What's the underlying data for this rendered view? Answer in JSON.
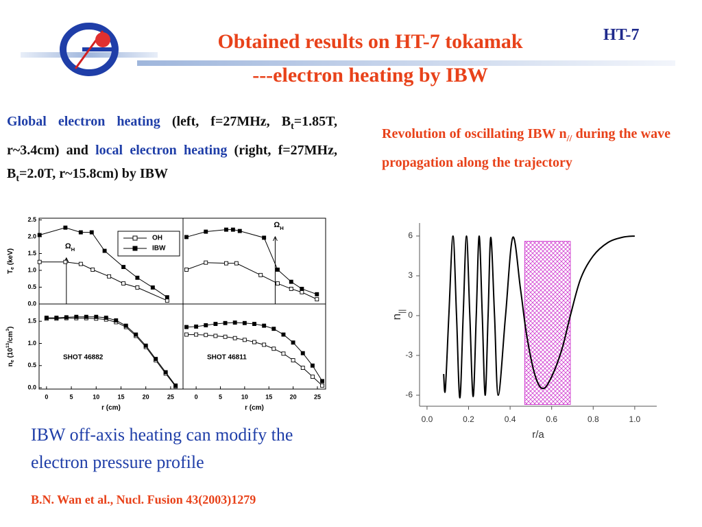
{
  "header": {
    "title_line1": "Obtained results on HT-7 tokamak",
    "title_line2": "---electron heating by IBW",
    "tag": "HT-7"
  },
  "left_text": {
    "color": "#111111",
    "segments": [
      {
        "text": "Global electron heating",
        "color": "#1f3ea8"
      },
      {
        "text": " (left, f=27MHz, B"
      },
      {
        "text": "t",
        "sub": true
      },
      {
        "text": "=1.85T, r~3.4cm) and "
      },
      {
        "text": "local electron heating",
        "color": "#1f3ea8"
      },
      {
        "text": " (right, f=27MHz, B"
      },
      {
        "text": "t",
        "sub": true
      },
      {
        "text": "=2.0T, r~15.8cm) by IBW"
      }
    ]
  },
  "right_text": {
    "color": "#e8421a",
    "segments": [
      {
        "text": "Revolution of oscillating IBW n"
      },
      {
        "text": "//",
        "sub": true
      },
      {
        "text": " during the wave propagation along the trajectory"
      }
    ]
  },
  "conclusion": "IBW off-axis heating can modify the electron pressure profile",
  "citation": "B.N. Wan et al., Nucl. Fusion 43(2003)1279",
  "chart_data": [
    {
      "type": "line",
      "xlim": [
        -1.5,
        27.5
      ],
      "ylim": [
        0,
        2.55
      ],
      "yticks": [
        {
          "value": 0,
          "label": "0.0"
        },
        {
          "value": 0.5,
          "label": "0.5"
        },
        {
          "value": 1,
          "label": "1.0"
        },
        {
          "value": 1.5,
          "label": "1.5"
        },
        {
          "value": 2,
          "label": "2.0"
        },
        {
          "value": 2.5,
          "label": "2.5"
        }
      ],
      "ylabel": [
        {
          "text": "T"
        },
        {
          "text": "e",
          "sub": true
        },
        {
          "text": " (keV)"
        }
      ],
      "legend": "upper-right",
      "arrow": {
        "label": [
          {
            "text": "Ω"
          },
          {
            "text": "H",
            "sub": true
          }
        ],
        "x": 4,
        "y": 1.37
      },
      "series": [
        {
          "name": "OH",
          "marker": "open-square",
          "color": "#000000",
          "x": [
            -1.4,
            3.8,
            6.9,
            9.3,
            12.6,
            15.5,
            18.3,
            24.3
          ],
          "values": [
            1.25,
            1.25,
            1.19,
            1.02,
            0.82,
            0.61,
            0.49,
            0.1
          ]
        },
        {
          "name": "IBW",
          "marker": "filled-square",
          "color": "#000000",
          "x": [
            -1.4,
            3.8,
            6.9,
            9.1,
            11.7,
            15.5,
            18.3,
            21.4,
            24.3
          ],
          "values": [
            2.05,
            2.27,
            2.13,
            2.13,
            1.58,
            1.1,
            0.78,
            0.49,
            0.2
          ]
        }
      ]
    },
    {
      "type": "line",
      "xlim": [
        -2.7,
        26.7
      ],
      "ylim": [
        0,
        2.55
      ],
      "arrow": {
        "label": [
          {
            "text": "Ω"
          },
          {
            "text": "H",
            "sub": true
          }
        ],
        "x": 16.3,
        "y": 2.0
      },
      "series": [
        {
          "marker": "open-square",
          "color": "#000000",
          "x": [
            -2,
            2,
            6.2,
            8.3,
            13.3,
            16.8,
            19.6,
            21.8,
            24.9
          ],
          "values": [
            1.02,
            1.23,
            1.21,
            1.21,
            0.86,
            0.61,
            0.45,
            0.35,
            0.14
          ]
        },
        {
          "marker": "filled-square",
          "color": "#000000",
          "x": [
            -2,
            2,
            6.2,
            7.6,
            9,
            14,
            16.8,
            19.6,
            21.8,
            24.9
          ],
          "values": [
            1.99,
            2.15,
            2.21,
            2.21,
            2.17,
            1.97,
            1.02,
            0.66,
            0.45,
            0.29
          ]
        }
      ]
    },
    {
      "type": "line",
      "xlim": [
        -1.5,
        27.5
      ],
      "ylim": [
        -0.03,
        1.89
      ],
      "xticks": [
        0,
        5,
        10,
        15,
        20,
        25
      ],
      "xlabel": [
        {
          "text": "r (cm)"
        }
      ],
      "yticks": [
        {
          "value": 0,
          "label": "0.0"
        },
        {
          "value": 0.5,
          "label": "0.5"
        },
        {
          "value": 1,
          "label": "1.0"
        },
        {
          "value": 1.5,
          "label": "1.5"
        }
      ],
      "ylabel": [
        {
          "text": "n"
        },
        {
          "text": "e",
          "sub": true
        },
        {
          "text": " (10"
        },
        {
          "text": "13",
          "sup": true
        },
        {
          "text": "/cm"
        },
        {
          "text": "3",
          "sup": true
        },
        {
          "text": ")"
        }
      ],
      "note": "SHOT 46882",
      "series": [
        {
          "marker": "open-square",
          "color": "#000000",
          "x": [
            0,
            2,
            4,
            6,
            8,
            10,
            12,
            14,
            16,
            18,
            20,
            22,
            24,
            26
          ],
          "values": [
            1.56,
            1.56,
            1.57,
            1.57,
            1.57,
            1.56,
            1.54,
            1.48,
            1.37,
            1.17,
            0.92,
            0.62,
            0.32,
            0.03
          ]
        },
        {
          "marker": "filled-square",
          "color": "#000000",
          "x": [
            0,
            2,
            4,
            6,
            8,
            10,
            12,
            14,
            16,
            18,
            20,
            22,
            24,
            26
          ],
          "values": [
            1.58,
            1.58,
            1.59,
            1.6,
            1.6,
            1.6,
            1.58,
            1.52,
            1.4,
            1.2,
            0.95,
            0.65,
            0.35,
            0.05
          ]
        }
      ]
    },
    {
      "type": "line",
      "xlim": [
        -2.7,
        26.7
      ],
      "ylim": [
        -0.03,
        1.89
      ],
      "xticks": [
        0,
        5,
        10,
        15,
        20,
        25
      ],
      "xlabel": [
        {
          "text": "r (cm)"
        }
      ],
      "note": "SHOT 46811",
      "series": [
        {
          "marker": "open-square",
          "color": "#000000",
          "x": [
            -2,
            0,
            2,
            4,
            6,
            8,
            10,
            12,
            14,
            16,
            18,
            20,
            22,
            24,
            26
          ],
          "values": [
            1.2,
            1.2,
            1.19,
            1.17,
            1.15,
            1.12,
            1.08,
            1.03,
            0.97,
            0.88,
            0.77,
            0.62,
            0.45,
            0.25,
            0.05
          ]
        },
        {
          "marker": "filled-square",
          "color": "#000000",
          "x": [
            -2,
            0,
            2,
            4,
            6,
            8,
            10,
            12,
            14,
            16,
            18,
            20,
            22,
            24,
            26
          ],
          "values": [
            1.37,
            1.38,
            1.41,
            1.44,
            1.46,
            1.47,
            1.46,
            1.44,
            1.4,
            1.33,
            1.2,
            1.02,
            0.78,
            0.5,
            0.15
          ]
        }
      ]
    },
    {
      "type": "line",
      "smooth": true,
      "xlim": [
        -0.036,
        1.106
      ],
      "ylim": [
        -6.83,
        6.98
      ],
      "xticks": [
        {
          "value": 0,
          "label": "0.0"
        },
        {
          "value": 0.2,
          "label": "0.2"
        },
        {
          "value": 0.4,
          "label": "0.4"
        },
        {
          "value": 0.6,
          "label": "0.6"
        },
        {
          "value": 0.8,
          "label": "0.8"
        },
        {
          "value": 1,
          "label": "1.0"
        }
      ],
      "yticks": [
        6,
        3,
        0,
        -3,
        -6
      ],
      "xlabel": [
        {
          "text": "r/a"
        }
      ],
      "ylabel": [
        {
          "text": "n"
        },
        {
          "text": "||",
          "sub": true
        }
      ],
      "highlight": {
        "xrange": [
          0.47,
          0.69
        ],
        "yrange": [
          -6.7,
          5.6
        ],
        "color": "#d040d0"
      },
      "series": [
        {
          "color": "#000000",
          "x": [
            0.08,
            0.088,
            0.105,
            0.125,
            0.142,
            0.158,
            0.174,
            0.19,
            0.206,
            0.222,
            0.237,
            0.251,
            0.266,
            0.28,
            0.294,
            0.307,
            0.325,
            0.343,
            0.378,
            0.413,
            0.45,
            0.48,
            0.52,
            0.558,
            0.6,
            0.65,
            0.69,
            0.74,
            0.8,
            0.87,
            0.94,
            1.0
          ],
          "values": [
            -4.4,
            -5.6,
            0,
            6.0,
            0,
            -6.2,
            0,
            6.0,
            0,
            -6.1,
            0,
            6.0,
            0,
            -6.0,
            0,
            5.9,
            0,
            -6.0,
            0,
            5.9,
            2,
            -1.5,
            -4.5,
            -5.5,
            -4.6,
            -2.5,
            0,
            2.8,
            4.5,
            5.5,
            5.9,
            6.0
          ]
        }
      ]
    }
  ]
}
